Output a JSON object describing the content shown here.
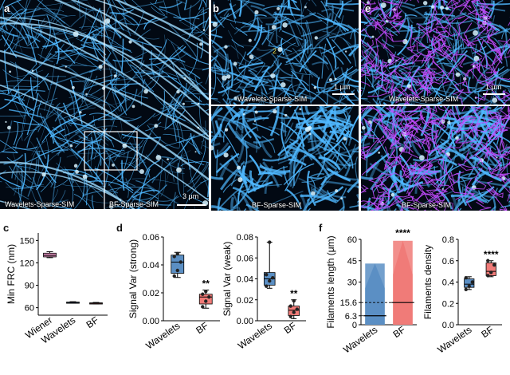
{
  "panels": {
    "a": {
      "label": "a",
      "left_caption": "Wavelets-Sparse-SIM",
      "right_caption": "BF-Sparse-SIM",
      "scale_label": "3 μm"
    },
    "b": {
      "label": "b",
      "top_caption": "Wavelets-Sparse-SIM",
      "bottom_caption": "BF-Sparse-SIM",
      "scale_label": "1 μm",
      "annotation": "2"
    },
    "e": {
      "label": "e",
      "top_caption": "Wavelets-Sparse-SIM",
      "bottom_caption": "BF-Sparse-SIM",
      "scale_label": "1 μm"
    },
    "c": {
      "label": "c"
    },
    "d": {
      "label": "d"
    },
    "f": {
      "label": "f"
    }
  },
  "colors": {
    "microscopy_cyan": "#4fb8ff",
    "network_magenta": "#c34bff",
    "wavelets_box": "#5b8fc4",
    "bf_box": "#f07b78",
    "wiener_box": "#d98bb6"
  },
  "chart_data": [
    {
      "type": "box",
      "panel": "c",
      "ylabel": "Min FRC (nm)",
      "ylim": [
        50,
        160
      ],
      "yticks": [
        60,
        90,
        120,
        150
      ],
      "categories": [
        "Wiener",
        "Wavelets",
        "BF"
      ],
      "series": [
        {
          "name": "Wiener",
          "q1": 128,
          "median": 130,
          "q3": 133,
          "min": 127,
          "max": 135
        },
        {
          "name": "Wavelets",
          "q1": 66.5,
          "median": 67,
          "q3": 67.5,
          "min": 66,
          "max": 68
        },
        {
          "name": "BF",
          "q1": 65.5,
          "median": 66,
          "q3": 66.5,
          "min": 65,
          "max": 67
        }
      ]
    },
    {
      "type": "box",
      "panel": "d-left",
      "ylabel": "Signal Var (strong)",
      "ylim": [
        0,
        0.06
      ],
      "yticks": [
        "0.00",
        "0.02",
        "0.04",
        "0.06"
      ],
      "categories": [
        "Wavelets",
        "BF"
      ],
      "series": [
        {
          "name": "Wavelets",
          "q1": 0.034,
          "median": 0.042,
          "q3": 0.047,
          "min": 0.031,
          "max": 0.049,
          "points": [
            0.032,
            0.036,
            0.042,
            0.046,
            0.048
          ]
        },
        {
          "name": "BF",
          "q1": 0.012,
          "median": 0.017,
          "q3": 0.019,
          "min": 0.009,
          "max": 0.022,
          "points": [
            0.01,
            0.014,
            0.017,
            0.019,
            0.021
          ]
        }
      ],
      "annotations": [
        "**"
      ]
    },
    {
      "type": "box",
      "panel": "d-right",
      "ylabel": "Signal Var (weak)",
      "ylim": [
        0,
        0.08
      ],
      "yticks": [
        "0.00",
        "0.02",
        "0.04",
        "0.06",
        "0.08"
      ],
      "categories": [
        "Wavelets",
        "BF"
      ],
      "series": [
        {
          "name": "Wavelets",
          "q1": 0.034,
          "median": 0.04,
          "q3": 0.046,
          "min": 0.031,
          "max": 0.075,
          "points": [
            0.033,
            0.038,
            0.041,
            0.044,
            0.075
          ]
        },
        {
          "name": "BF",
          "q1": 0.005,
          "median": 0.01,
          "q3": 0.014,
          "min": 0.002,
          "max": 0.02,
          "points": [
            0.004,
            0.008,
            0.011,
            0.014,
            0.019
          ]
        }
      ],
      "annotations": [
        "**"
      ]
    },
    {
      "type": "strip",
      "panel": "f-left",
      "ylabel": "Filaments length (μm)",
      "ylim": [
        0,
        60
      ],
      "yticks": [
        "0",
        "6.3",
        "15.6",
        "30",
        "45",
        "60"
      ],
      "categories": [
        "Wavelets",
        "BF"
      ],
      "series": [
        {
          "name": "Wavelets",
          "max": 43,
          "mean": 6.3
        },
        {
          "name": "BF",
          "max": 59,
          "mean": 15.6
        }
      ],
      "annotations": [
        "****"
      ]
    },
    {
      "type": "box",
      "panel": "f-right",
      "ylabel": "Filaments density",
      "ylim": [
        0,
        0.8
      ],
      "yticks": [
        "0.0",
        "0.2",
        "0.4",
        "0.6",
        "0.8"
      ],
      "categories": [
        "Wavelets",
        "BF"
      ],
      "series": [
        {
          "name": "Wavelets",
          "q1": 0.35,
          "median": 0.38,
          "q3": 0.43,
          "min": 0.33,
          "max": 0.45,
          "points": [
            0.33,
            0.36,
            0.4,
            0.44
          ]
        },
        {
          "name": "BF",
          "q1": 0.46,
          "median": 0.5,
          "q3": 0.58,
          "min": 0.45,
          "max": 0.6,
          "points": [
            0.46,
            0.49,
            0.56,
            0.6
          ]
        }
      ],
      "annotations": [
        "****"
      ]
    }
  ]
}
